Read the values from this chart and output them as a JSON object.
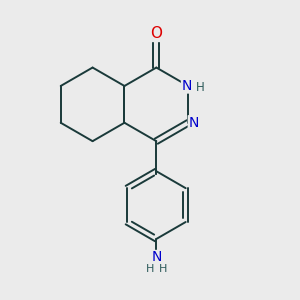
{
  "bg_color": "#ebebeb",
  "bond_color": "#1a3a3a",
  "atom_colors": {
    "O": "#dd0000",
    "N": "#0000cc",
    "H": "#2d5a5a"
  },
  "figsize": [
    3.0,
    3.0
  ],
  "dpi": 100,
  "bond_lw": 1.4,
  "font_size": 9.5
}
